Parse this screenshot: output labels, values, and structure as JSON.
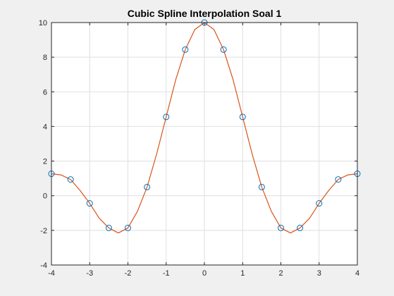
{
  "chart_data": {
    "type": "line",
    "title": "Cubic Spline Interpolation Soal 1",
    "xlabel": "",
    "ylabel": "",
    "xlim": [
      -4,
      4
    ],
    "ylim": [
      -4,
      10
    ],
    "xticks": [
      -4,
      -3,
      -2,
      -1,
      0,
      1,
      2,
      3,
      4
    ],
    "yticks": [
      -4,
      -2,
      0,
      2,
      4,
      6,
      8,
      10
    ],
    "grid": true,
    "legend": "none",
    "series": [
      {
        "style": "markers",
        "marker": "circle",
        "color": "#0072BD",
        "x": [
          -4,
          -3.5,
          -3,
          -2.5,
          -2,
          -1.5,
          -1,
          -0.5,
          0,
          0.5,
          1,
          1.5,
          2,
          2.5,
          3,
          3.5,
          4
        ],
        "y": [
          1.27,
          0.94,
          -0.44,
          -1.86,
          -1.86,
          0.5,
          4.55,
          8.44,
          10.0,
          8.44,
          4.55,
          0.5,
          -1.86,
          -1.86,
          -0.44,
          0.94,
          1.27
        ]
      },
      {
        "style": "line",
        "color": "#D95319",
        "x": [
          -4,
          -3.75,
          -3.5,
          -3.25,
          -3,
          -2.75,
          -2.5,
          -2.25,
          -2,
          -1.75,
          -1.5,
          -1.25,
          -1,
          -0.75,
          -0.5,
          -0.25,
          0,
          0.25,
          0.5,
          0.75,
          1,
          1.25,
          1.5,
          1.75,
          2,
          2.25,
          2.5,
          2.75,
          3,
          3.25,
          3.5,
          3.75,
          4
        ],
        "y": [
          1.27,
          1.2,
          0.94,
          0.3,
          -0.44,
          -1.3,
          -1.86,
          -2.15,
          -1.86,
          -0.9,
          0.5,
          2.4,
          4.55,
          6.7,
          8.44,
          9.6,
          10.0,
          9.6,
          8.44,
          6.7,
          4.55,
          2.4,
          0.5,
          -0.9,
          -1.86,
          -2.15,
          -1.86,
          -1.3,
          -0.44,
          0.3,
          0.94,
          1.2,
          1.27
        ]
      }
    ]
  }
}
